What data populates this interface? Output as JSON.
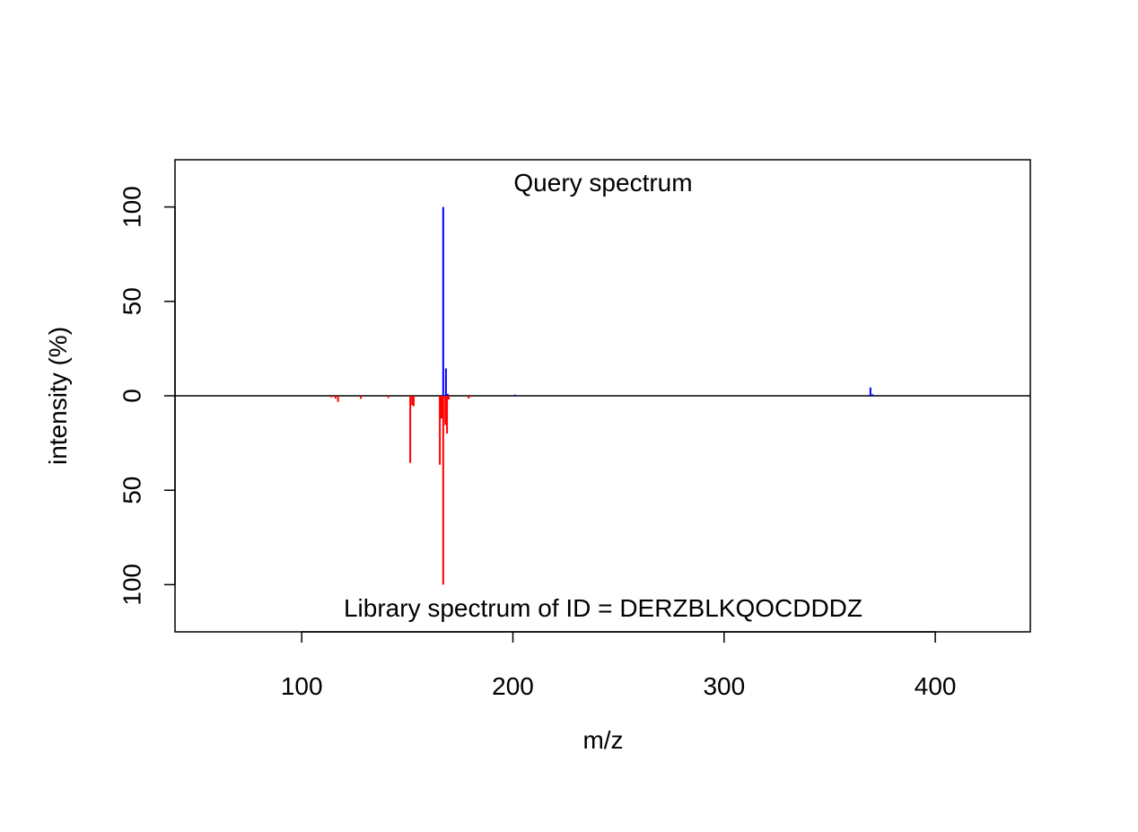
{
  "chart_data": {
    "type": "bar",
    "title": "",
    "xlabel": "m/z",
    "ylabel": "intensity (%)",
    "xlim": [
      40,
      445
    ],
    "ylim": [
      -125,
      125
    ],
    "grid": false,
    "annotations": {
      "top": "Query spectrum",
      "bottom": "Library spectrum of ID = DERZBLKQOCDDDZ"
    },
    "x_ticks": [
      {
        "value": 100,
        "label": "100"
      },
      {
        "value": 200,
        "label": "200"
      },
      {
        "value": 300,
        "label": "300"
      },
      {
        "value": 400,
        "label": "400"
      }
    ],
    "y_ticks": [
      {
        "value": 100,
        "label": "100"
      },
      {
        "value": 50,
        "label": "50"
      },
      {
        "value": 0,
        "label": "0"
      },
      {
        "value": -50,
        "label": "50"
      },
      {
        "value": -100,
        "label": "100"
      }
    ],
    "series": [
      {
        "name": "Query spectrum",
        "direction": "up",
        "color": "#0000ff",
        "x": [
          167.0,
          168.3,
          169.1,
          201.0,
          369.3,
          370.3
        ],
        "y": [
          100,
          14.5,
          1.0,
          0.6,
          4.4,
          0.8
        ]
      },
      {
        "name": "Library spectrum of ID = DERZBLKQOCDDDZ",
        "direction": "down",
        "color": "#ff0000",
        "x": [
          114.0,
          116.0,
          117.2,
          128.0,
          141.0,
          151.4,
          152.3,
          153.0,
          165.4,
          166.2,
          167.0,
          168.0,
          168.8,
          169.6,
          179.0,
          180.0
        ],
        "y": [
          0.8,
          1.5,
          3.2,
          1.6,
          1.1,
          35.5,
          5.0,
          5.5,
          36.5,
          12.0,
          100,
          15.5,
          20.0,
          2.0,
          1.4,
          0.6
        ]
      }
    ]
  }
}
